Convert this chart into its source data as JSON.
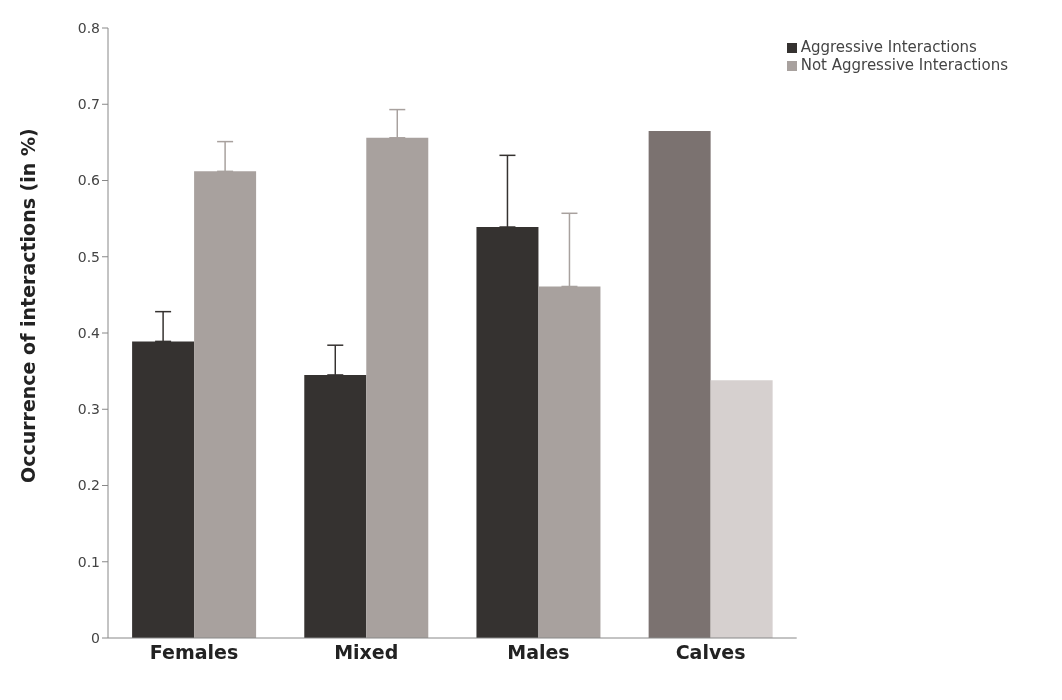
{
  "chart_data": {
    "type": "bar",
    "ylabel": "Occurrence of interactions  (in %)",
    "categories": [
      "Females",
      "Mixed",
      "Males",
      "Calves"
    ],
    "series": [
      {
        "name": "Aggressive Interactions",
        "color": "#353230",
        "colors": [
          "#353230",
          "#353230",
          "#353230",
          "#7b7270"
        ],
        "values": [
          0.389,
          0.345,
          0.539,
          0.665
        ],
        "errors": [
          [
            0.389,
            0.428
          ],
          [
            0.345,
            0.384
          ],
          [
            0.539,
            0.633
          ],
          null
        ]
      },
      {
        "name": "Not Aggressive Interactions",
        "color": "#a8a19e",
        "colors": [
          "#a8a19e",
          "#a8a19e",
          "#a8a19e",
          "#d6d0cf"
        ],
        "values": [
          0.612,
          0.656,
          0.461,
          0.338
        ],
        "errors": [
          [
            0.612,
            0.651
          ],
          [
            0.656,
            0.693
          ],
          [
            0.461,
            0.557
          ],
          null
        ]
      }
    ],
    "ylim": [
      0,
      0.8
    ],
    "yticks": [
      0,
      0.1,
      0.2,
      0.3,
      0.4,
      0.5,
      0.6,
      0.7,
      0.8
    ],
    "grid": false,
    "legend": "top right"
  }
}
